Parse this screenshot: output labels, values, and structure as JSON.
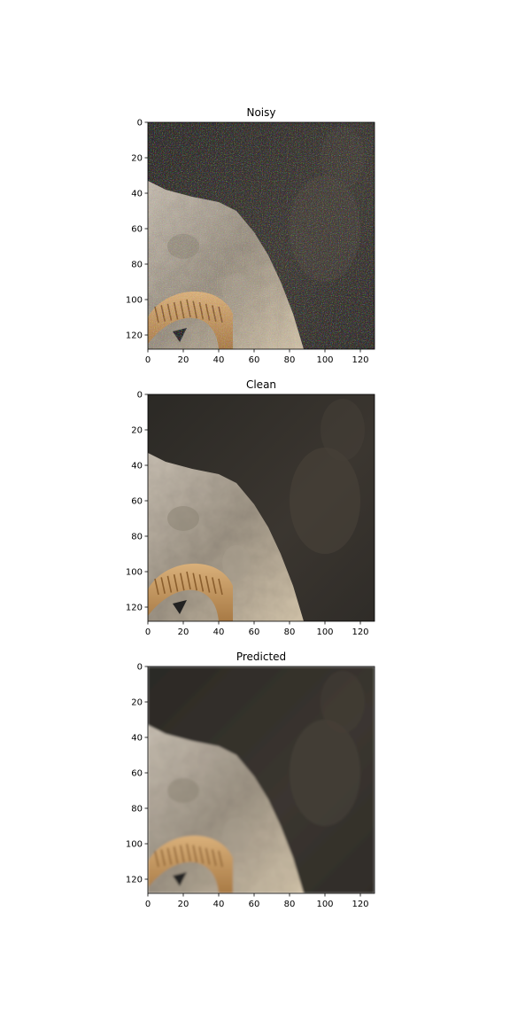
{
  "chart_data": [
    {
      "type": "image",
      "title": "Noisy",
      "image_shape": [
        128,
        128
      ],
      "xlim": [
        0,
        128
      ],
      "ylim": [
        128,
        0
      ],
      "xticks": [
        0,
        20,
        40,
        60,
        80,
        100,
        120
      ],
      "yticks": [
        0,
        20,
        40,
        60,
        80,
        100,
        120
      ],
      "noise": 0.9
    },
    {
      "type": "image",
      "title": "Clean",
      "image_shape": [
        128,
        128
      ],
      "xlim": [
        0,
        128
      ],
      "ylim": [
        128,
        0
      ],
      "xticks": [
        0,
        20,
        40,
        60,
        80,
        100,
        120
      ],
      "yticks": [
        0,
        20,
        40,
        60,
        80,
        100,
        120
      ],
      "noise": 0
    },
    {
      "type": "image",
      "title": "Predicted",
      "image_shape": [
        128,
        128
      ],
      "xlim": [
        0,
        128
      ],
      "ylim": [
        128,
        0
      ],
      "xticks": [
        0,
        20,
        40,
        60,
        80,
        100,
        120
      ],
      "yticks": [
        0,
        20,
        40,
        60,
        80,
        100,
        120
      ],
      "noise": 0.25
    }
  ],
  "colors": {
    "dark_rock": "#37332d",
    "light_rock": "#b2a899",
    "horn": "#c79b63",
    "horn_ridge": "#8a5e2d"
  }
}
